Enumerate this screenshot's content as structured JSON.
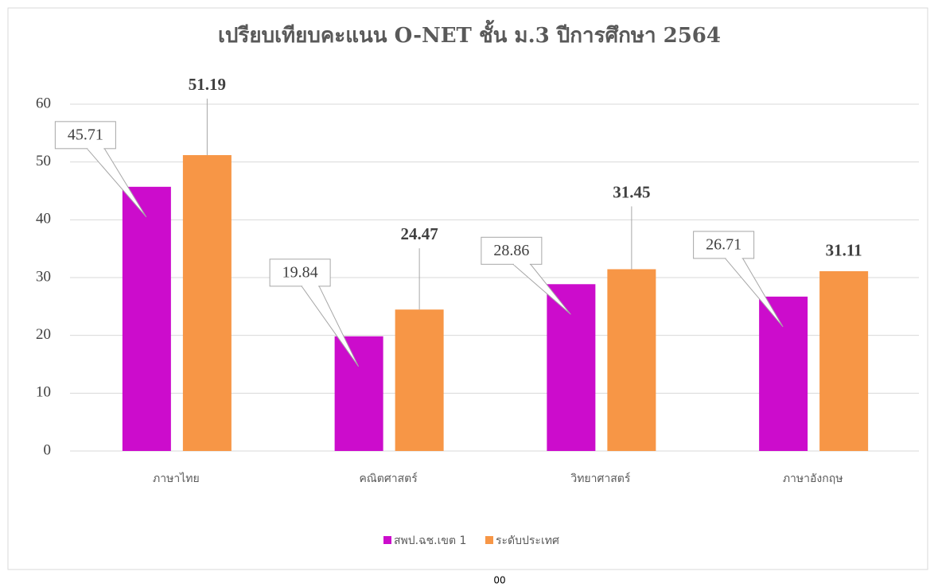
{
  "chart_data": {
    "type": "bar",
    "title": "เปรียบเทียบคะแนน O-NET ชั้น ม.3  ปีการศึกษา 2564",
    "categories": [
      "ภาษาไทย",
      "คณิตศาสตร์",
      "วิทยาศาสตร์",
      "ภาษาอังกฤษ"
    ],
    "series": [
      {
        "name": "สพป.ฉช.เขต 1",
        "color": "#cc0ccc",
        "values": [
          45.71,
          19.84,
          28.86,
          26.71
        ]
      },
      {
        "name": "ระดับประเทศ",
        "color": "#f79646",
        "values": [
          51.19,
          24.47,
          31.45,
          31.11
        ]
      }
    ],
    "ylim": [
      0,
      60
    ],
    "yticks": [
      0,
      10,
      20,
      30,
      40,
      50,
      60
    ],
    "grid": true,
    "legend": "bottom",
    "footer": "00"
  }
}
